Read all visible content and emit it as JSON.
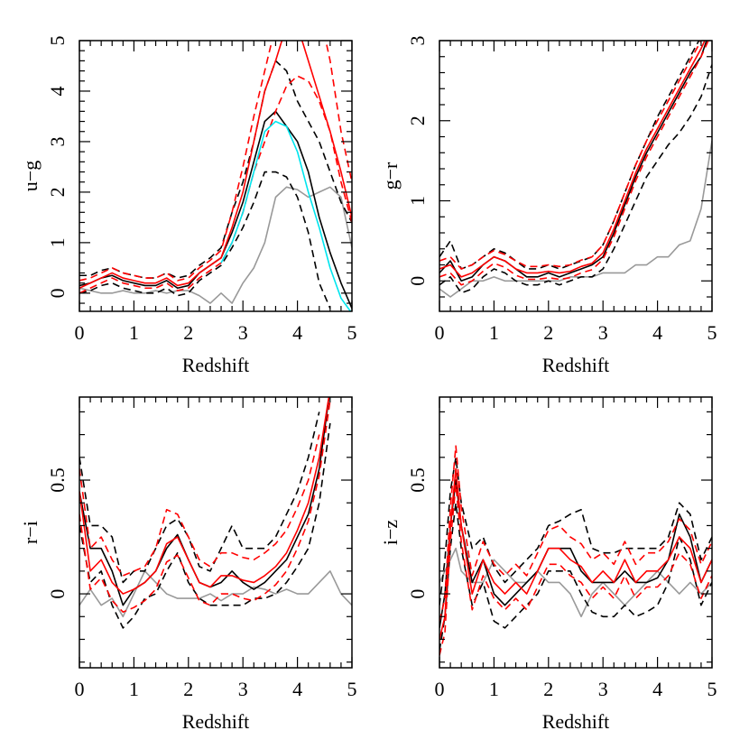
{
  "chart_data": [
    {
      "type": "line",
      "x_label": "Redshift",
      "y_label": "u−g",
      "x": [
        0,
        0.2,
        0.4,
        0.6,
        0.8,
        1.0,
        1.2,
        1.4,
        1.6,
        1.8,
        2.0,
        2.2,
        2.4,
        2.6,
        2.8,
        3.0,
        3.2,
        3.4,
        3.6,
        3.8,
        4.0,
        4.2,
        4.4,
        4.6,
        4.8,
        5.0
      ],
      "xlim": [
        0,
        5
      ],
      "xticks": [
        0,
        1,
        2,
        3,
        4,
        5
      ],
      "ylim": [
        -0.36,
        5
      ],
      "yticks": [
        0,
        1,
        2,
        3,
        4,
        5
      ],
      "series": [
        {
          "color": "#999999",
          "dashed": false,
          "values": [
            0.1,
            0.05,
            0.0,
            0.0,
            0.05,
            0.0,
            0.0,
            0.05,
            0.0,
            0.05,
            0.05,
            -0.05,
            -0.2,
            0.0,
            -0.2,
            0.2,
            0.5,
            1.0,
            1.9,
            2.1,
            2.05,
            1.9,
            2.0,
            2.1,
            1.9,
            0.9
          ]
        },
        {
          "color": "#000000",
          "dashed": true,
          "values": [
            0.35,
            0.35,
            0.45,
            0.5,
            0.4,
            0.35,
            0.3,
            0.3,
            0.4,
            0.3,
            0.35,
            0.55,
            0.7,
            0.9,
            1.6,
            2.2,
            3.0,
            4.0,
            4.6,
            4.4,
            3.8,
            3.4,
            3.0,
            2.4,
            1.8,
            1.4
          ]
        },
        {
          "color": "#000000",
          "dashed": true,
          "values": [
            0.0,
            0.05,
            0.15,
            0.2,
            0.1,
            0.05,
            0.0,
            0.0,
            0.1,
            -0.05,
            0.0,
            0.25,
            0.4,
            0.55,
            0.9,
            1.3,
            1.8,
            2.4,
            2.4,
            2.3,
            1.9,
            1.2,
            0.2,
            -0.3,
            null,
            null
          ]
        },
        {
          "color": "#000000",
          "dashed": false,
          "values": [
            0.15,
            0.2,
            0.3,
            0.35,
            0.25,
            0.2,
            0.15,
            0.15,
            0.25,
            0.1,
            0.15,
            0.4,
            0.55,
            0.7,
            1.2,
            1.8,
            2.6,
            3.4,
            3.6,
            3.3,
            3.0,
            2.4,
            1.5,
            0.8,
            0.2,
            -0.3
          ]
        },
        {
          "color": "#ff0000",
          "dashed": true,
          "values": [
            0.25,
            0.3,
            0.4,
            0.5,
            0.4,
            0.35,
            0.3,
            0.3,
            0.4,
            0.25,
            0.3,
            0.5,
            0.65,
            0.85,
            1.6,
            2.5,
            3.5,
            4.4,
            5.3,
            null,
            null,
            null,
            5.6,
            4.6,
            3.2,
            2.2
          ]
        },
        {
          "color": "#ff0000",
          "dashed": true,
          "values": [
            0.0,
            0.1,
            0.2,
            0.3,
            0.2,
            0.15,
            0.1,
            0.1,
            0.2,
            0.05,
            0.1,
            0.3,
            0.45,
            0.6,
            1.0,
            1.6,
            2.4,
            3.0,
            3.6,
            4.1,
            4.3,
            4.2,
            3.8,
            3.2,
            2.2,
            1.4
          ]
        },
        {
          "color": "#ff0000",
          "dashed": false,
          "values": [
            0.1,
            0.2,
            0.3,
            0.4,
            0.3,
            0.25,
            0.2,
            0.2,
            0.3,
            0.15,
            0.2,
            0.4,
            0.55,
            0.7,
            1.3,
            2.0,
            3.0,
            4.0,
            4.6,
            5.3,
            5.3,
            4.6,
            3.9,
            3.2,
            2.4,
            1.5
          ]
        },
        {
          "color": "#00e5ee",
          "dashed": false,
          "values": [
            null,
            null,
            null,
            null,
            null,
            null,
            null,
            null,
            null,
            null,
            null,
            null,
            null,
            0.6,
            1.0,
            1.6,
            2.4,
            3.2,
            3.4,
            3.3,
            2.8,
            2.0,
            1.3,
            0.5,
            -0.1,
            -0.4
          ]
        }
      ]
    },
    {
      "type": "line",
      "x_label": "Redshift",
      "y_label": "g−r",
      "x": [
        0,
        0.2,
        0.4,
        0.6,
        0.8,
        1.0,
        1.2,
        1.4,
        1.6,
        1.8,
        2.0,
        2.2,
        2.4,
        2.6,
        2.8,
        3.0,
        3.2,
        3.4,
        3.6,
        3.8,
        4.0,
        4.2,
        4.4,
        4.6,
        4.8,
        5.0
      ],
      "xlim": [
        0,
        5
      ],
      "xticks": [
        0,
        1,
        2,
        3,
        4,
        5
      ],
      "ylim": [
        -0.38,
        3
      ],
      "yticks": [
        0,
        1,
        2,
        3
      ],
      "series": [
        {
          "color": "#999999",
          "dashed": false,
          "values": [
            -0.1,
            -0.2,
            -0.1,
            0.0,
            0.0,
            0.05,
            0.0,
            0.0,
            0.0,
            0.0,
            0.0,
            0.0,
            0.05,
            0.05,
            0.05,
            0.1,
            0.1,
            0.1,
            0.2,
            0.2,
            0.3,
            0.3,
            0.45,
            0.5,
            0.9,
            1.75
          ]
        },
        {
          "color": "#000000",
          "dashed": true,
          "values": [
            0.3,
            0.5,
            0.15,
            0.2,
            0.3,
            0.4,
            0.35,
            0.25,
            0.15,
            0.15,
            0.2,
            0.15,
            0.2,
            0.25,
            0.3,
            0.45,
            0.75,
            1.1,
            1.45,
            1.75,
            2.05,
            2.3,
            2.55,
            2.8,
            3.05,
            3.5
          ]
        },
        {
          "color": "#000000",
          "dashed": true,
          "values": [
            -0.05,
            0.05,
            -0.15,
            -0.1,
            0.05,
            0.15,
            0.1,
            0.0,
            -0.05,
            -0.05,
            0.0,
            -0.05,
            0.0,
            0.05,
            0.05,
            0.15,
            0.4,
            0.7,
            1.0,
            1.3,
            1.5,
            1.7,
            1.85,
            2.05,
            2.3,
            2.7
          ]
        },
        {
          "color": "#000000",
          "dashed": false,
          "values": [
            0.1,
            0.25,
            0.0,
            0.05,
            0.2,
            0.3,
            0.25,
            0.15,
            0.05,
            0.05,
            0.1,
            0.05,
            0.1,
            0.15,
            0.2,
            0.3,
            0.6,
            0.95,
            1.3,
            1.6,
            1.85,
            2.1,
            2.35,
            2.6,
            2.8,
            3.2
          ]
        },
        {
          "color": "#ff0000",
          "dashed": true,
          "values": [
            0.25,
            0.3,
            0.15,
            0.2,
            0.3,
            0.38,
            0.33,
            0.25,
            0.18,
            0.18,
            0.2,
            0.18,
            0.2,
            0.26,
            0.3,
            0.45,
            0.75,
            1.1,
            1.45,
            1.75,
            2.0,
            2.25,
            2.5,
            2.75,
            3.0,
            3.3
          ]
        },
        {
          "color": "#ff0000",
          "dashed": true,
          "values": [
            0.05,
            0.1,
            -0.05,
            0.0,
            0.12,
            0.22,
            0.17,
            0.07,
            0.02,
            0.02,
            0.04,
            0.02,
            0.04,
            0.1,
            0.14,
            0.27,
            0.55,
            0.9,
            1.25,
            1.55,
            1.8,
            2.05,
            2.3,
            2.55,
            2.8,
            3.1
          ]
        },
        {
          "color": "#ff0000",
          "dashed": false,
          "values": [
            0.15,
            0.2,
            0.05,
            0.1,
            0.2,
            0.3,
            0.25,
            0.15,
            0.1,
            0.1,
            0.12,
            0.1,
            0.12,
            0.18,
            0.22,
            0.35,
            0.65,
            1.0,
            1.35,
            1.65,
            1.9,
            2.15,
            2.4,
            2.65,
            2.9,
            3.2
          ]
        }
      ]
    },
    {
      "type": "line",
      "x_label": "Redshift",
      "y_label": "r−i",
      "x": [
        0,
        0.2,
        0.4,
        0.6,
        0.8,
        1.0,
        1.2,
        1.4,
        1.6,
        1.8,
        2.0,
        2.2,
        2.4,
        2.6,
        2.8,
        3.0,
        3.2,
        3.4,
        3.6,
        3.8,
        4.0,
        4.2,
        4.4,
        4.6,
        4.8,
        5.0
      ],
      "xlim": [
        0,
        5
      ],
      "xticks": [
        0,
        1,
        2,
        3,
        4,
        5
      ],
      "ylim": [
        -0.325,
        0.865
      ],
      "yticks": [
        0,
        0.5
      ],
      "series": [
        {
          "color": "#999999",
          "dashed": false,
          "values": [
            -0.05,
            0.02,
            -0.05,
            -0.02,
            -0.1,
            0.0,
            0.1,
            0.05,
            0.0,
            -0.02,
            -0.02,
            -0.02,
            0.0,
            -0.03,
            0.0,
            0.0,
            0.03,
            0.02,
            0.0,
            0.02,
            0.0,
            0.0,
            0.05,
            0.1,
            0.0,
            -0.05
          ]
        },
        {
          "color": "#000000",
          "dashed": true,
          "values": [
            0.6,
            0.3,
            0.3,
            0.25,
            0.05,
            0.1,
            0.1,
            0.2,
            0.3,
            0.33,
            0.25,
            0.12,
            0.1,
            0.2,
            0.3,
            0.2,
            0.2,
            0.2,
            0.25,
            0.35,
            0.45,
            0.6,
            0.8,
            null,
            null,
            null
          ]
        },
        {
          "color": "#000000",
          "dashed": true,
          "values": [
            0.3,
            0.05,
            0.1,
            -0.05,
            -0.15,
            -0.1,
            -0.02,
            0.0,
            0.1,
            0.18,
            0.05,
            -0.02,
            -0.05,
            -0.05,
            -0.05,
            -0.05,
            -0.02,
            -0.02,
            0.0,
            0.05,
            0.12,
            0.2,
            0.4,
            0.75,
            null,
            null
          ]
        },
        {
          "color": "#000000",
          "dashed": false,
          "values": [
            0.45,
            0.2,
            0.2,
            0.1,
            -0.05,
            0.02,
            0.05,
            0.1,
            0.2,
            0.26,
            0.15,
            0.05,
            0.03,
            0.05,
            0.1,
            0.05,
            0.02,
            0.05,
            0.1,
            0.15,
            0.25,
            0.35,
            0.55,
            0.9,
            null,
            null
          ]
        },
        {
          "color": "#ff0000",
          "dashed": true,
          "values": [
            0.55,
            0.2,
            0.25,
            0.15,
            0.08,
            0.1,
            0.12,
            0.2,
            0.37,
            0.35,
            0.25,
            0.15,
            0.12,
            0.18,
            0.18,
            0.16,
            0.15,
            0.18,
            0.22,
            0.28,
            0.38,
            0.5,
            0.7,
            null,
            null,
            null
          ]
        },
        {
          "color": "#ff0000",
          "dashed": true,
          "values": [
            0.35,
            0.02,
            0.07,
            -0.03,
            -0.08,
            -0.06,
            -0.03,
            0.02,
            0.14,
            0.17,
            0.07,
            -0.03,
            -0.05,
            0.0,
            0.0,
            -0.02,
            -0.03,
            0.0,
            0.04,
            0.1,
            0.2,
            0.32,
            0.52,
            0.85,
            null,
            null
          ]
        },
        {
          "color": "#ff0000",
          "dashed": false,
          "values": [
            0.45,
            0.1,
            0.15,
            0.05,
            0.0,
            0.02,
            0.05,
            0.1,
            0.22,
            0.25,
            0.15,
            0.05,
            0.03,
            0.08,
            0.08,
            0.06,
            0.05,
            0.08,
            0.12,
            0.18,
            0.28,
            0.4,
            0.6,
            0.9,
            null,
            null
          ]
        }
      ]
    },
    {
      "type": "line",
      "x_label": "Redshift",
      "y_label": "i−z",
      "x": [
        0,
        0.1,
        0.2,
        0.3,
        0.4,
        0.6,
        0.8,
        1.0,
        1.2,
        1.4,
        1.6,
        1.8,
        2.0,
        2.2,
        2.4,
        2.6,
        2.8,
        3.0,
        3.2,
        3.4,
        3.6,
        3.8,
        4.0,
        4.2,
        4.4,
        4.6,
        4.8,
        5.0
      ],
      "xlim": [
        0,
        5
      ],
      "xticks": [
        0,
        1,
        2,
        3,
        4,
        5
      ],
      "ylim": [
        -0.325,
        0.865
      ],
      "yticks": [
        0,
        0.5
      ],
      "series": [
        {
          "color": "#999999",
          "dashed": false,
          "values": [
            0.05,
            0.1,
            0.15,
            0.2,
            0.1,
            0.05,
            0.05,
            0.15,
            0.1,
            0.05,
            0.05,
            0.1,
            0.05,
            0.05,
            0.0,
            -0.1,
            0.0,
            0.05,
            0.0,
            -0.05,
            0.0,
            0.05,
            0.1,
            0.05,
            0.0,
            0.05,
            0.0,
            0.05
          ]
        },
        {
          "color": "#000000",
          "dashed": true,
          "values": [
            -0.05,
            0.15,
            0.45,
            0.6,
            0.4,
            0.2,
            0.25,
            0.12,
            0.05,
            0.1,
            0.15,
            0.2,
            0.3,
            0.32,
            0.35,
            0.37,
            0.2,
            0.18,
            0.18,
            0.2,
            0.2,
            0.2,
            0.2,
            0.25,
            0.4,
            0.35,
            0.15,
            0.25
          ]
        },
        {
          "color": "#000000",
          "dashed": true,
          "values": [
            -0.25,
            -0.1,
            0.2,
            0.4,
            0.2,
            -0.05,
            0.05,
            -0.12,
            -0.15,
            -0.1,
            -0.05,
            0.0,
            0.1,
            0.1,
            0.1,
            0.0,
            -0.08,
            -0.1,
            -0.1,
            -0.05,
            -0.1,
            -0.08,
            -0.05,
            0.05,
            0.25,
            0.15,
            -0.05,
            0.05
          ]
        },
        {
          "color": "#000000",
          "dashed": false,
          "values": [
            -0.15,
            0.0,
            0.3,
            0.5,
            0.3,
            0.05,
            0.15,
            0.0,
            -0.05,
            0.0,
            0.05,
            0.1,
            0.2,
            0.2,
            0.2,
            0.1,
            0.05,
            0.05,
            0.05,
            0.1,
            0.05,
            0.05,
            0.07,
            0.15,
            0.35,
            0.25,
            0.05,
            0.15
          ]
        },
        {
          "color": "#ff0000",
          "dashed": true,
          "values": [
            -0.12,
            -0.02,
            0.38,
            0.65,
            0.38,
            0.08,
            0.23,
            0.13,
            0.08,
            0.13,
            0.08,
            0.18,
            0.28,
            0.3,
            0.25,
            0.22,
            0.15,
            0.18,
            0.13,
            0.23,
            0.13,
            0.18,
            0.18,
            0.23,
            0.33,
            0.28,
            0.13,
            0.23
          ]
        },
        {
          "color": "#ff0000",
          "dashed": true,
          "values": [
            -0.27,
            -0.17,
            0.23,
            0.48,
            0.23,
            -0.07,
            0.08,
            -0.02,
            -0.07,
            -0.02,
            -0.07,
            0.03,
            0.13,
            0.13,
            0.08,
            0.05,
            -0.02,
            0.03,
            -0.02,
            0.08,
            -0.02,
            0.03,
            0.03,
            0.08,
            0.18,
            0.13,
            -0.02,
            0.08
          ]
        },
        {
          "color": "#ff0000",
          "dashed": false,
          "values": [
            -0.2,
            -0.1,
            0.3,
            0.55,
            0.3,
            0.0,
            0.15,
            0.05,
            0.0,
            0.05,
            0.0,
            0.1,
            0.2,
            0.2,
            0.15,
            0.12,
            0.05,
            0.1,
            0.05,
            0.15,
            0.05,
            0.1,
            0.1,
            0.15,
            0.25,
            0.2,
            0.05,
            0.15
          ]
        }
      ]
    }
  ]
}
